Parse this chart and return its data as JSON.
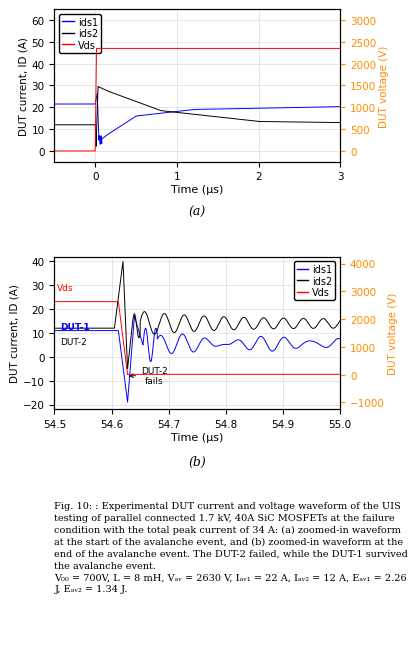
{
  "fig_width": 3.97,
  "fig_height": 6.53,
  "ax1": {
    "xlim": [
      -0.5,
      3.0
    ],
    "ylim_left": [
      -5,
      65
    ],
    "ylim_right": [
      -250,
      3250
    ],
    "yticks_left": [
      0,
      10,
      20,
      30,
      40,
      50,
      60
    ],
    "yticks_right": [
      0,
      500,
      1000,
      1500,
      2000,
      2500,
      3000
    ],
    "xticks": [
      0,
      1,
      2,
      3
    ],
    "xlabel": "Time (μs)",
    "ylabel_left": "DUT current, ID (A)",
    "ylabel_right": "DUT voltage (V)",
    "label_a": "(a)",
    "legend_ids1": "ids1",
    "legend_ids2": "ids2",
    "legend_vds": "Vds",
    "color_ids1": "blue",
    "color_ids2": "black",
    "color_vds": "red",
    "color_right_axis": "#FF8C00"
  },
  "ax2": {
    "xlim": [
      54.5,
      55.0
    ],
    "ylim_left": [
      -22,
      42
    ],
    "ylim_right": [
      -1250,
      4250
    ],
    "yticks_left": [
      -20,
      -10,
      0,
      10,
      20,
      30,
      40
    ],
    "yticks_right": [
      -1000,
      0,
      1000,
      2000,
      3000,
      4000
    ],
    "xticks": [
      54.5,
      54.6,
      54.7,
      54.8,
      54.9,
      55.0
    ],
    "xlabel": "Time (μs)",
    "ylabel_left": "DUT current, ID (A)",
    "ylabel_right": "DUT voltage (V)",
    "label_b": "(b)",
    "legend_ids1": "ids1",
    "legend_ids2": "ids2",
    "legend_vds": "Vds",
    "color_ids1": "blue",
    "color_ids2": "black",
    "color_vds": "red",
    "color_right_axis": "#FF8C00",
    "ann_dut1": "DUT-1",
    "ann_dut2": "DUT-2",
    "ann_fail": "DUT-2\nfails",
    "ann_vds": "Vds"
  },
  "caption_bold": "Fig. 10:",
  "caption_normal": " : Experimental DUT current and voltage waveform of the UIS testing of parallel connected 1.7 kV, 40A SiC MOSFETs at the failure condition with the total peak current of 34 A: (a) zoomed-in waveform at the start of the avalanche event, and (b) zoomed-in waveform at the end of the avalanche event. The DUT-2 failed, while the DUT-1 survived the avalanche event.",
  "caption_params": "V₀₀ = 700V, L = 8 mH, Vₐᵥ = 2630 V, Iₐᵥ₁ = 22 A, Iₐᵥ₂ = 12 A, Eₐᵥ₁ = 2.26 J, Eₐᵥ₂ = 1.34 J."
}
